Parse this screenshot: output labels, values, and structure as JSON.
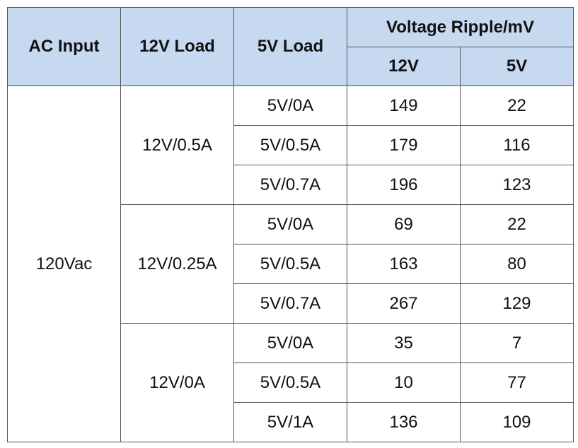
{
  "table": {
    "headers": [
      "AC Input",
      "12V Load",
      "5V Load"
    ],
    "group_header": "Voltage Ripple/mV",
    "sub_headers": [
      "12V",
      "5V"
    ],
    "ac_input": "120Vac",
    "groups": [
      {
        "load_12v": "12V/0.5A",
        "rows": [
          [
            "5V/0A",
            "149",
            "22"
          ],
          [
            "5V/0.5A",
            "179",
            "116"
          ],
          [
            "5V/0.7A",
            "196",
            "123"
          ]
        ]
      },
      {
        "load_12v": "12V/0.25A",
        "rows": [
          [
            "5V/0A",
            "69",
            "22"
          ],
          [
            "5V/0.5A",
            "163",
            "80"
          ],
          [
            "5V/0.7A",
            "267",
            "129"
          ]
        ]
      },
      {
        "load_12v": "12V/0A",
        "rows": [
          [
            "5V/0A",
            "35",
            "7"
          ],
          [
            "5V/0.5A",
            "10",
            "77"
          ],
          [
            "5V/1A",
            "136",
            "109"
          ]
        ]
      }
    ]
  }
}
